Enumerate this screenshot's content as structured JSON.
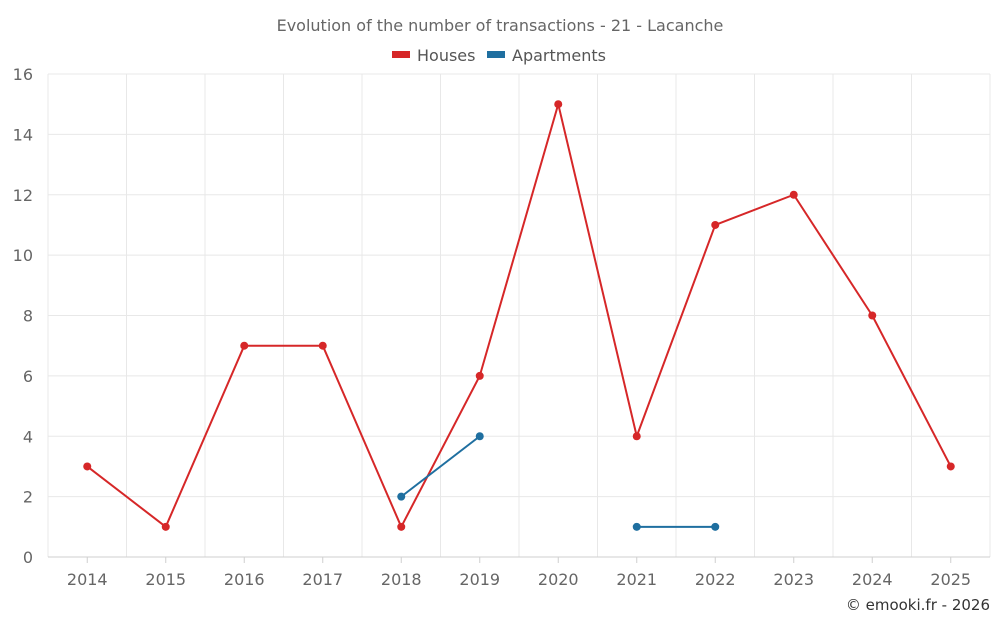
{
  "chart_data": {
    "type": "line",
    "title": "Evolution of the number of transactions - 21 - Lacanche",
    "categories": [
      "2014",
      "2015",
      "2016",
      "2017",
      "2018",
      "2019",
      "2020",
      "2021",
      "2022",
      "2023",
      "2024",
      "2025"
    ],
    "ylim": [
      0,
      16
    ],
    "yticks": [
      0,
      2,
      4,
      6,
      8,
      10,
      12,
      14,
      16
    ],
    "grid": true,
    "legend_position": "top-center",
    "series": [
      {
        "name": "Houses",
        "color": "#d62728",
        "values": [
          3,
          1,
          7,
          7,
          1,
          6,
          15,
          4,
          11,
          12,
          8,
          3
        ]
      },
      {
        "name": "Apartments",
        "color": "#1f6fa0",
        "values": [
          null,
          null,
          null,
          null,
          2,
          4,
          null,
          1,
          1,
          null,
          null,
          null
        ]
      }
    ]
  },
  "credit": "© emooki.fr - 2026"
}
